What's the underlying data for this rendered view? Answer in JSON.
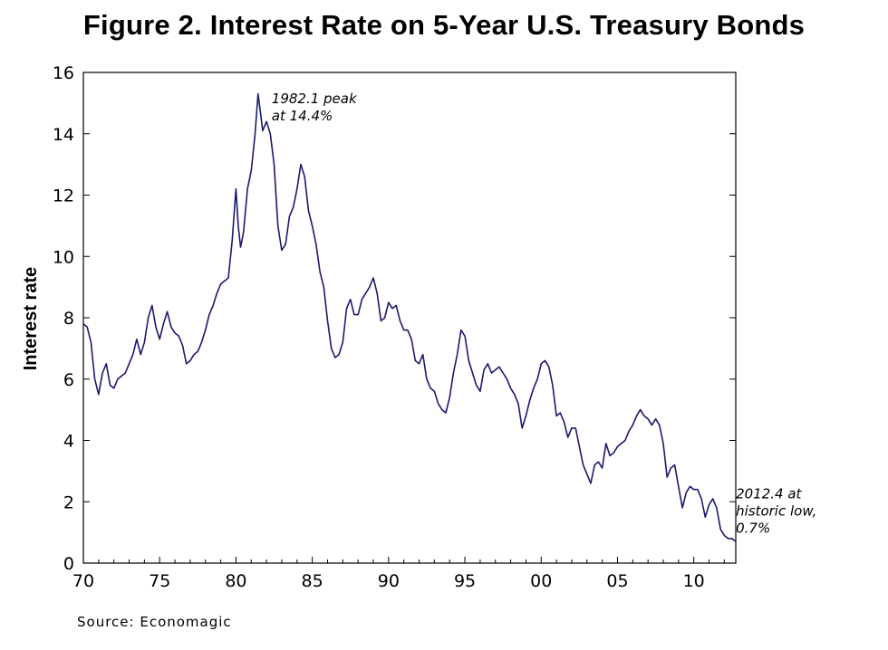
{
  "chart_data": {
    "type": "line",
    "title": "Figure 2.  Interest Rate on 5-Year U.S. Treasury Bonds",
    "xlabel": "",
    "ylabel": "Interest rate",
    "xlim": [
      1970,
      2012.75
    ],
    "ylim": [
      0,
      16
    ],
    "x_ticks": [
      1970,
      1975,
      1980,
      1985,
      1990,
      1995,
      2000,
      2005,
      2010
    ],
    "x_tick_labels": [
      "70",
      "75",
      "80",
      "85",
      "90",
      "95",
      "00",
      "05",
      "10"
    ],
    "y_ticks": [
      0,
      2,
      4,
      6,
      8,
      10,
      12,
      14,
      16
    ],
    "y_tick_labels": [
      "0",
      "2",
      "4",
      "6",
      "8",
      "10",
      "12",
      "14",
      "16"
    ],
    "grid": false,
    "series": [
      {
        "name": "5-Year U.S. Treasury Bond Rate",
        "color": "#1a1a6e",
        "x": [
          1970.0,
          1970.25,
          1970.5,
          1970.75,
          1971.0,
          1971.25,
          1971.5,
          1971.75,
          1972.0,
          1972.25,
          1972.5,
          1972.75,
          1973.0,
          1973.25,
          1973.5,
          1973.75,
          1974.0,
          1974.25,
          1974.5,
          1974.75,
          1975.0,
          1975.25,
          1975.5,
          1975.75,
          1976.0,
          1976.25,
          1976.5,
          1976.75,
          1977.0,
          1977.25,
          1977.5,
          1977.75,
          1978.0,
          1978.25,
          1978.5,
          1978.75,
          1979.0,
          1979.25,
          1979.5,
          1979.75,
          1980.0,
          1980.15,
          1980.3,
          1980.5,
          1980.75,
          1981.0,
          1981.25,
          1981.45,
          1981.6,
          1981.75,
          1982.0,
          1982.25,
          1982.5,
          1982.75,
          1983.0,
          1983.25,
          1983.5,
          1983.75,
          1984.0,
          1984.25,
          1984.5,
          1984.75,
          1985.0,
          1985.25,
          1985.5,
          1985.75,
          1986.0,
          1986.25,
          1986.5,
          1986.75,
          1987.0,
          1987.25,
          1987.5,
          1987.75,
          1988.0,
          1988.25,
          1988.5,
          1988.75,
          1989.0,
          1989.25,
          1989.5,
          1989.75,
          1990.0,
          1990.25,
          1990.5,
          1990.75,
          1991.0,
          1991.25,
          1991.5,
          1991.75,
          1992.0,
          1992.25,
          1992.5,
          1992.75,
          1993.0,
          1993.25,
          1993.5,
          1993.75,
          1994.0,
          1994.25,
          1994.5,
          1994.75,
          1995.0,
          1995.25,
          1995.5,
          1995.75,
          1996.0,
          1996.25,
          1996.5,
          1996.75,
          1997.0,
          1997.25,
          1997.5,
          1997.75,
          1998.0,
          1998.25,
          1998.5,
          1998.75,
          1999.0,
          1999.25,
          1999.5,
          1999.75,
          2000.0,
          2000.25,
          2000.5,
          2000.75,
          2001.0,
          2001.25,
          2001.5,
          2001.75,
          2002.0,
          2002.25,
          2002.5,
          2002.75,
          2003.0,
          2003.25,
          2003.5,
          2003.75,
          2004.0,
          2004.25,
          2004.5,
          2004.75,
          2005.0,
          2005.25,
          2005.5,
          2005.75,
          2006.0,
          2006.25,
          2006.5,
          2006.75,
          2007.0,
          2007.25,
          2007.5,
          2007.75,
          2008.0,
          2008.25,
          2008.5,
          2008.75,
          2009.0,
          2009.25,
          2009.5,
          2009.75,
          2010.0,
          2010.25,
          2010.5,
          2010.75,
          2011.0,
          2011.25,
          2011.5,
          2011.75,
          2012.0,
          2012.25,
          2012.5,
          2012.75
        ],
        "values": [
          7.8,
          7.7,
          7.2,
          6.0,
          5.5,
          6.2,
          6.5,
          5.8,
          5.7,
          6.0,
          6.1,
          6.2,
          6.5,
          6.8,
          7.3,
          6.8,
          7.2,
          8.0,
          8.4,
          7.7,
          7.3,
          7.8,
          8.2,
          7.7,
          7.5,
          7.4,
          7.1,
          6.5,
          6.6,
          6.8,
          6.9,
          7.2,
          7.6,
          8.1,
          8.4,
          8.8,
          9.1,
          9.2,
          9.3,
          10.5,
          12.2,
          11.0,
          10.3,
          10.8,
          12.2,
          12.8,
          14.0,
          15.3,
          14.7,
          14.1,
          14.4,
          14.0,
          13.0,
          11.0,
          10.2,
          10.4,
          11.3,
          11.6,
          12.2,
          13.0,
          12.6,
          11.5,
          11.0,
          10.4,
          9.5,
          9.0,
          7.9,
          7.0,
          6.7,
          6.8,
          7.2,
          8.3,
          8.6,
          8.1,
          8.1,
          8.6,
          8.8,
          9.0,
          9.3,
          8.8,
          7.9,
          8.0,
          8.5,
          8.3,
          8.4,
          7.9,
          7.6,
          7.6,
          7.3,
          6.6,
          6.5,
          6.8,
          6.0,
          5.7,
          5.6,
          5.2,
          5.0,
          4.9,
          5.4,
          6.2,
          6.8,
          7.6,
          7.4,
          6.6,
          6.2,
          5.8,
          5.6,
          6.3,
          6.5,
          6.2,
          6.3,
          6.4,
          6.2,
          6.0,
          5.7,
          5.5,
          5.2,
          4.4,
          4.8,
          5.3,
          5.7,
          6.0,
          6.5,
          6.6,
          6.4,
          5.8,
          4.8,
          4.9,
          4.6,
          4.1,
          4.4,
          4.4,
          3.8,
          3.2,
          2.9,
          2.6,
          3.2,
          3.3,
          3.1,
          3.9,
          3.5,
          3.6,
          3.8,
          3.9,
          4.0,
          4.3,
          4.5,
          4.8,
          5.0,
          4.8,
          4.7,
          4.5,
          4.7,
          4.5,
          3.9,
          2.8,
          3.1,
          3.2,
          2.5,
          1.8,
          2.3,
          2.5,
          2.4,
          2.4,
          2.1,
          1.5,
          1.9,
          2.1,
          1.8,
          1.1,
          0.9,
          0.8,
          0.8,
          0.7
        ]
      }
    ],
    "annotations": [
      {
        "lines": [
          "1982.1 peak",
          "at 14.4%"
        ],
        "x": 1982.1,
        "y": 14.4
      },
      {
        "lines": [
          "2012.4 at",
          "historic low,",
          " 0.7%"
        ],
        "x": 2012.4,
        "y": 0.7
      }
    ],
    "source": "Source:  Economagic"
  }
}
